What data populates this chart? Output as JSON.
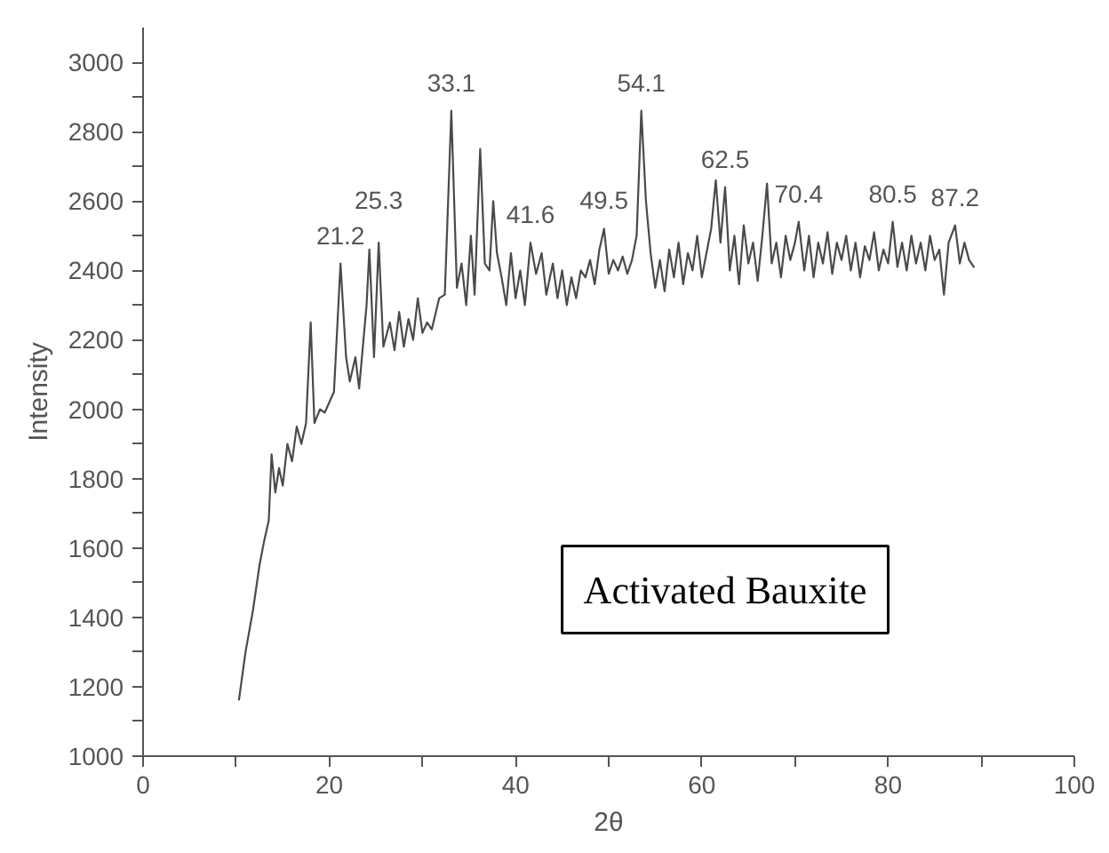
{
  "chart_data": {
    "type": "line",
    "xlabel": "2θ",
    "ylabel": "Intensity",
    "grid": false,
    "marker": "none",
    "line_style": "solid",
    "xlim": [
      0,
      100
    ],
    "ylim": [
      1000,
      3100
    ],
    "xticks": [
      0,
      {
        "value": 10,
        "label": null
      },
      20,
      {
        "value": 30,
        "label": null
      },
      40,
      {
        "value": 50,
        "label": null
      },
      60,
      {
        "value": 70,
        "label": null
      },
      80,
      {
        "value": 90,
        "label": null
      },
      100
    ],
    "yticks": [
      1000,
      {
        "value": 1100,
        "label": null
      },
      1200,
      {
        "value": 1300,
        "label": null
      },
      1400,
      {
        "value": 1500,
        "label": null
      },
      1600,
      {
        "value": 1700,
        "label": null
      },
      1800,
      {
        "value": 1900,
        "label": null
      },
      2000,
      {
        "value": 2100,
        "label": null
      },
      2200,
      {
        "value": 2300,
        "label": null
      },
      2400,
      {
        "value": 2500,
        "label": null
      },
      2600,
      {
        "value": 2700,
        "label": null
      },
      2800,
      {
        "value": 2900,
        "label": null
      },
      3000
    ],
    "series": [
      {
        "color": "#4a4a4a",
        "x": [
          10.3,
          11,
          11.8,
          12.5,
          13,
          13.5,
          13.8,
          14.2,
          14.6,
          15,
          15.5,
          16,
          16.5,
          17,
          17.5,
          18,
          18.4,
          19,
          19.5,
          20,
          20.5,
          21.2,
          21.8,
          22.2,
          22.8,
          23.2,
          24,
          24.3,
          24.8,
          25.3,
          25.8,
          26.5,
          27,
          27.5,
          28,
          28.5,
          29,
          29.5,
          30,
          30.5,
          31,
          31.8,
          32.4,
          33.1,
          33.7,
          34.2,
          34.7,
          35.2,
          35.6,
          36.2,
          36.7,
          37.2,
          37.6,
          38,
          38.5,
          39,
          39.5,
          40,
          40.5,
          41,
          41.6,
          42.2,
          42.8,
          43.3,
          44,
          44.5,
          45,
          45.5,
          46,
          46.5,
          47,
          47.5,
          48,
          48.5,
          49,
          49.5,
          50,
          50.5,
          51,
          51.5,
          52,
          52.5,
          53,
          53.5,
          54,
          54.5,
          55,
          55.5,
          56,
          56.5,
          57,
          57.5,
          58,
          58.5,
          59,
          59.5,
          60,
          60.5,
          61,
          61.5,
          62,
          62.5,
          63,
          63.5,
          64,
          64.5,
          65,
          65.5,
          66,
          66.5,
          67,
          67.5,
          68,
          68.5,
          69,
          69.5,
          70,
          70.4,
          71,
          71.5,
          72,
          72.5,
          73,
          73.5,
          74,
          74.5,
          75,
          75.5,
          76,
          76.5,
          77,
          77.5,
          78,
          78.5,
          79,
          79.5,
          80,
          80.5,
          81,
          81.5,
          82,
          82.5,
          83,
          83.5,
          84,
          84.5,
          85,
          85.5,
          86,
          86.5,
          87.2,
          87.7,
          88.2,
          88.7,
          89.2
        ],
        "values": [
          1163,
          1300,
          1420,
          1550,
          1620,
          1680,
          1870,
          1760,
          1830,
          1780,
          1900,
          1850,
          1950,
          1900,
          1960,
          2250,
          1960,
          2000,
          1990,
          2020,
          2050,
          2420,
          2150,
          2080,
          2150,
          2060,
          2300,
          2460,
          2150,
          2480,
          2180,
          2250,
          2170,
          2280,
          2180,
          2260,
          2200,
          2320,
          2220,
          2250,
          2230,
          2320,
          2330,
          2860,
          2350,
          2420,
          2300,
          2500,
          2330,
          2750,
          2420,
          2400,
          2600,
          2450,
          2380,
          2300,
          2450,
          2320,
          2400,
          2300,
          2480,
          2390,
          2450,
          2330,
          2420,
          2320,
          2400,
          2300,
          2380,
          2320,
          2400,
          2380,
          2430,
          2360,
          2460,
          2520,
          2390,
          2430,
          2400,
          2440,
          2390,
          2430,
          2500,
          2860,
          2600,
          2450,
          2350,
          2430,
          2340,
          2460,
          2380,
          2480,
          2360,
          2450,
          2400,
          2500,
          2380,
          2450,
          2520,
          2660,
          2480,
          2640,
          2400,
          2500,
          2360,
          2530,
          2420,
          2480,
          2370,
          2500,
          2650,
          2420,
          2480,
          2380,
          2500,
          2430,
          2480,
          2540,
          2400,
          2500,
          2380,
          2480,
          2420,
          2510,
          2390,
          2480,
          2430,
          2500,
          2400,
          2480,
          2380,
          2470,
          2430,
          2510,
          2400,
          2460,
          2420,
          2540,
          2410,
          2480,
          2400,
          2500,
          2420,
          2480,
          2400,
          2500,
          2430,
          2460,
          2330,
          2480,
          2530,
          2420,
          2480,
          2430,
          2410
        ]
      }
    ],
    "annotations": [
      {
        "text": "21.2",
        "x": 21.2,
        "y": 2420
      },
      {
        "text": "25.3",
        "x": 25.3,
        "y": 2480
      },
      {
        "text": "33.1",
        "x": 33.1,
        "y": 2860
      },
      {
        "text": "41.6",
        "x": 41.6,
        "y": 2480
      },
      {
        "text": "49.5",
        "x": 49.5,
        "y": 2520
      },
      {
        "text": "54.1",
        "x": 53.5,
        "y": 2860
      },
      {
        "text": "62.5",
        "x": 62.5,
        "y": 2640
      },
      {
        "text": "70.4",
        "x": 70.4,
        "y": 2540
      },
      {
        "text": "80.5",
        "x": 80.5,
        "y": 2540
      },
      {
        "text": "87.2",
        "x": 87.2,
        "y": 2530
      },
      "Activated Bauxite"
    ]
  }
}
